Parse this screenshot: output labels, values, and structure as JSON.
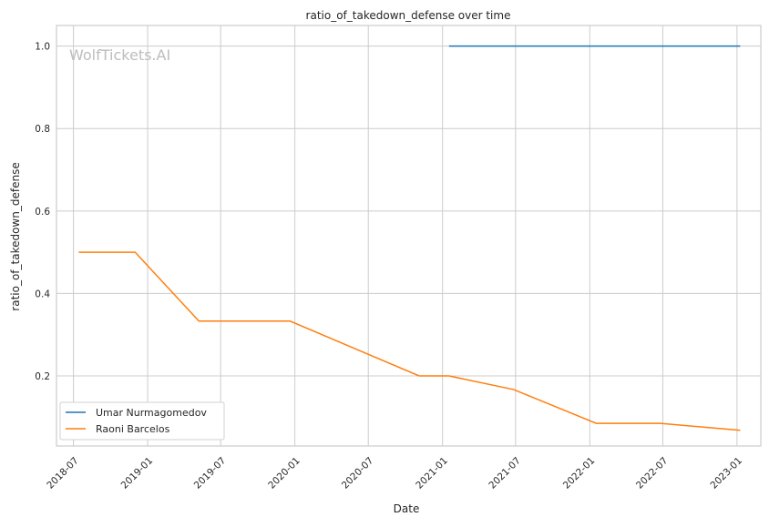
{
  "chart_data": {
    "type": "line",
    "title": "ratio_of_takedown_defense over time",
    "xlabel": "Date",
    "ylabel": "ratio_of_takedown_defense",
    "watermark": "WolfTickets.AI",
    "x_ticks": [
      "2018-07",
      "2019-01",
      "2019-07",
      "2020-01",
      "2020-07",
      "2021-01",
      "2021-07",
      "2022-01",
      "2022-07",
      "2023-01"
    ],
    "y_ticks": [
      0.2,
      0.4,
      0.6,
      0.8,
      1.0
    ],
    "ylim": [
      0.03,
      1.05
    ],
    "xlim": [
      "2018-05-20",
      "2023-03-01"
    ],
    "grid": true,
    "legend_position": "bottom-left",
    "series": [
      {
        "name": "Umar Nurmagomedov",
        "color": "#1f77b4",
        "x": [
          "2021-01-17",
          "2023-01-09"
        ],
        "y": [
          1.0,
          1.0
        ]
      },
      {
        "name": "Raoni Barcelos",
        "color": "#ff7f0e",
        "x": [
          "2018-07-14",
          "2018-12-01",
          "2019-05-08",
          "2019-12-20",
          "2020-11-04",
          "2021-01-17",
          "2021-06-26",
          "2022-01-17",
          "2022-06-25",
          "2023-01-09"
        ],
        "y": [
          0.5,
          0.5,
          0.333,
          0.333,
          0.2,
          0.2,
          0.167,
          0.085,
          0.085,
          0.068
        ]
      }
    ]
  }
}
